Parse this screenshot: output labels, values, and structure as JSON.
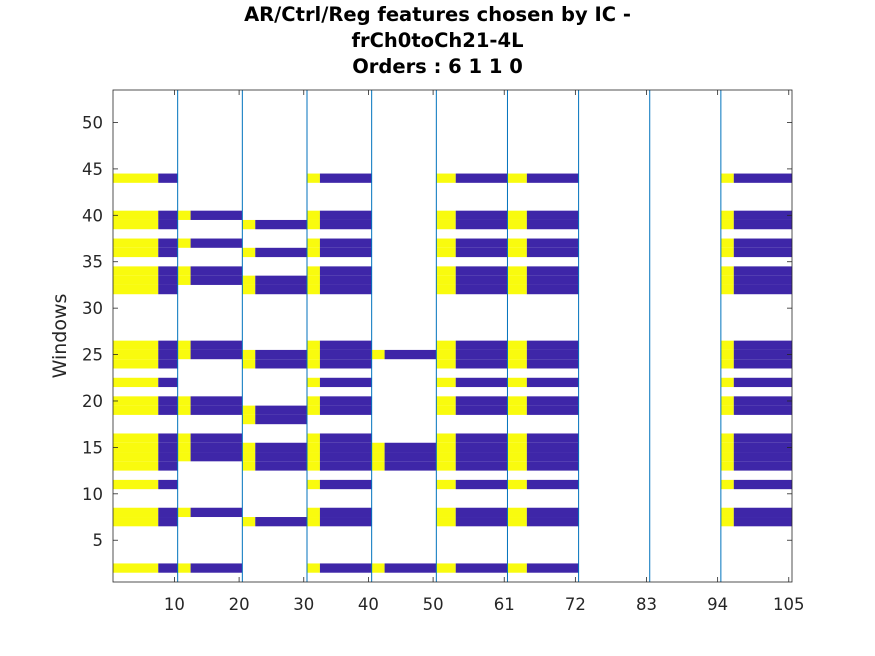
{
  "chart_data": {
    "type": "heatmap",
    "title": [
      "AR/Ctrl/Reg features chosen by IC -",
      "frCh0toCh21-4L",
      "Orders : 6 1 1 0"
    ],
    "xlabel": "",
    "ylabel": "Windows",
    "xlim": [
      0.5,
      105.5
    ],
    "ylim": [
      0.5,
      53.5
    ],
    "xtick_values": [
      10,
      20,
      30,
      40,
      50,
      61,
      72,
      83,
      94,
      105
    ],
    "xtick_labels": [
      "10",
      "20",
      "30",
      "40",
      "50",
      "61",
      "72",
      "83",
      "94",
      "105"
    ],
    "ytick_values": [
      5,
      10,
      15,
      20,
      25,
      30,
      35,
      40,
      45,
      50
    ],
    "ytick_labels": [
      "5",
      "10",
      "15",
      "20",
      "25",
      "30",
      "35",
      "40",
      "45",
      "50"
    ],
    "separator_x": [
      10.5,
      20.5,
      30.5,
      40.5,
      50.5,
      61.5,
      72.5,
      83.5,
      94.5
    ],
    "colors": {
      "high": "#f9fb0e",
      "low": "#3e26a8",
      "separator": "#0072bd",
      "background": "#ffffff"
    },
    "groups": [
      {
        "x": [
          1,
          10
        ],
        "split": 7,
        "rows": [
          2,
          7,
          8,
          11,
          13,
          14,
          15,
          16,
          19,
          20,
          22,
          24,
          25,
          26,
          32,
          33,
          34,
          36,
          37,
          39,
          40,
          44
        ]
      },
      {
        "x": [
          11,
          20
        ],
        "split": 12,
        "rows": [
          2,
          8,
          14,
          15,
          16,
          19,
          20,
          25,
          26,
          33,
          34,
          37,
          40
        ]
      },
      {
        "x": [
          21,
          30
        ],
        "split": 22,
        "rows": [
          7,
          13,
          14,
          15,
          18,
          19,
          24,
          25,
          32,
          33,
          36,
          39
        ]
      },
      {
        "x": [
          31,
          40
        ],
        "split": 32,
        "rows": [
          2,
          7,
          8,
          11,
          13,
          14,
          15,
          16,
          19,
          20,
          22,
          24,
          25,
          26,
          32,
          33,
          34,
          36,
          37,
          39,
          40,
          44
        ]
      },
      {
        "x": [
          41,
          50
        ],
        "split": 42,
        "rows": [
          2,
          13,
          14,
          15,
          25
        ]
      },
      {
        "x": [
          51,
          61
        ],
        "split": 53,
        "rows": [
          2,
          7,
          8,
          11,
          13,
          14,
          15,
          16,
          19,
          20,
          22,
          24,
          25,
          26,
          32,
          33,
          34,
          36,
          37,
          39,
          40,
          44
        ]
      },
      {
        "x": [
          62,
          72
        ],
        "split": 64,
        "rows": [
          2,
          7,
          8,
          11,
          13,
          14,
          15,
          16,
          19,
          20,
          22,
          24,
          25,
          26,
          32,
          33,
          34,
          36,
          37,
          39,
          40,
          44
        ]
      },
      {
        "x": [
          95,
          105
        ],
        "split": 96,
        "rows": [
          7,
          8,
          11,
          13,
          14,
          15,
          16,
          19,
          20,
          22,
          24,
          25,
          26,
          32,
          33,
          34,
          36,
          37,
          39,
          40,
          44
        ]
      }
    ]
  }
}
